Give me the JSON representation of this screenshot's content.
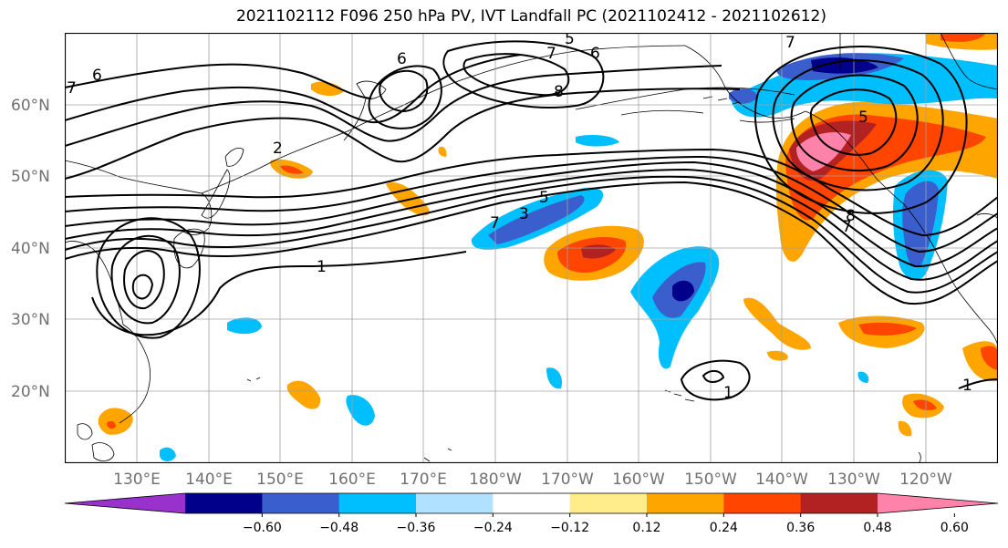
{
  "title": "2021102112 F096 250 hPa PV, IVT Landfall PC (2021102412 - 2021102612)",
  "lat_labels": [
    "60°N",
    "50°N",
    "40°N",
    "30°N",
    "20°N"
  ],
  "lon_labels": [
    "130°E",
    "140°E",
    "150°E",
    "160°E",
    "170°E",
    "180°W",
    "170°W",
    "160°W",
    "150°W",
    "140°W",
    "130°W",
    "120°W"
  ],
  "colorbar": {
    "colors": [
      "#9932cc",
      "#00008b",
      "#3a5fcd",
      "#00bfff",
      "#b0e2ff",
      "#ffffff",
      "#ffec8b",
      "#ffa500",
      "#ff4500",
      "#b22222",
      "#ff82ab"
    ],
    "tick_labels": [
      "−0.60",
      "−0.48",
      "−0.36",
      "−0.24",
      "−0.12",
      "0.12",
      "0.24",
      "0.36",
      "0.48",
      "0.60"
    ]
  },
  "contour_labels": [
    "1",
    "1",
    "1",
    "2",
    "5",
    "5",
    "6",
    "6",
    "6",
    "7",
    "7",
    "7",
    "7",
    "7",
    "8",
    "8",
    "3",
    "5"
  ]
}
